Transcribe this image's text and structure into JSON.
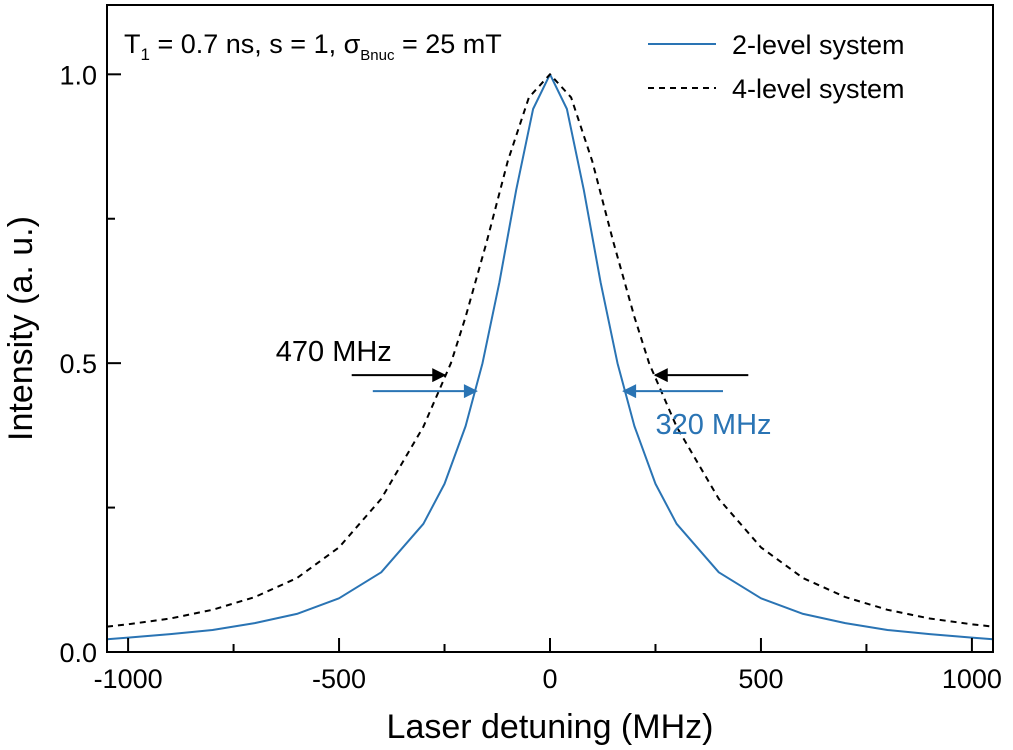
{
  "chart_data": {
    "type": "line",
    "title": "",
    "xlabel": "Laser detuning (MHz)",
    "ylabel": "Intensity (a. u.)",
    "xlim": [
      -1050,
      1050
    ],
    "ylim": [
      0.0,
      1.12
    ],
    "x_ticks": [
      -1000,
      -500,
      0,
      500,
      1000
    ],
    "x_tick_labels": [
      "-1000",
      "-500",
      "0",
      "500",
      "1000"
    ],
    "x_minor_ticks": [
      -750,
      -250,
      250,
      750
    ],
    "y_ticks": [
      0.0,
      0.5,
      1.0
    ],
    "y_tick_labels": [
      "0.0",
      "0.5",
      "1.0"
    ],
    "y_minor_ticks": [
      0.25,
      0.75
    ],
    "grid": false,
    "legend_position": "top-right",
    "parameters": {
      "t_symbol": "T",
      "t_subscript": "1",
      "t_rest": " = 0.7 ns, s = 1, ",
      "sigma_symbol": "σ",
      "sigma_subscript": "Bnuc",
      "sigma_rest": " = 25 mT"
    },
    "series": [
      {
        "name": "2-level system",
        "color": "#2a74b4",
        "style": "solid",
        "fwhm": 320,
        "x": [
          -1050,
          -1000,
          -900,
          -800,
          -700,
          -600,
          -500,
          -400,
          -300,
          -250,
          -200,
          -160,
          -120,
          -80,
          -40,
          0,
          40,
          80,
          120,
          160,
          200,
          250,
          300,
          400,
          500,
          600,
          700,
          800,
          900,
          1000,
          1050
        ],
        "y": [
          0.022,
          0.025,
          0.031,
          0.038,
          0.05,
          0.066,
          0.093,
          0.138,
          0.222,
          0.291,
          0.391,
          0.5,
          0.64,
          0.8,
          0.94,
          1.0,
          0.94,
          0.8,
          0.64,
          0.5,
          0.391,
          0.291,
          0.222,
          0.138,
          0.093,
          0.066,
          0.05,
          0.038,
          0.031,
          0.025,
          0.022
        ]
      },
      {
        "name": "4-level system",
        "color": "#000000",
        "style": "dashed",
        "fwhm": 470,
        "x": [
          -1050,
          -1000,
          -900,
          -800,
          -700,
          -600,
          -500,
          -400,
          -300,
          -235,
          -200,
          -150,
          -100,
          -50,
          0,
          50,
          100,
          150,
          200,
          235,
          300,
          400,
          500,
          600,
          700,
          800,
          900,
          1000,
          1050
        ],
        "y": [
          0.044,
          0.048,
          0.058,
          0.073,
          0.095,
          0.128,
          0.181,
          0.265,
          0.39,
          0.5,
          0.58,
          0.71,
          0.85,
          0.96,
          1.0,
          0.96,
          0.85,
          0.71,
          0.58,
          0.5,
          0.39,
          0.265,
          0.181,
          0.128,
          0.095,
          0.073,
          0.058,
          0.048,
          0.044
        ]
      }
    ],
    "annotations": [
      {
        "text": "470 MHz",
        "color": "#000000"
      },
      {
        "text": "320 MHz",
        "color": "#2a74b4"
      }
    ]
  }
}
